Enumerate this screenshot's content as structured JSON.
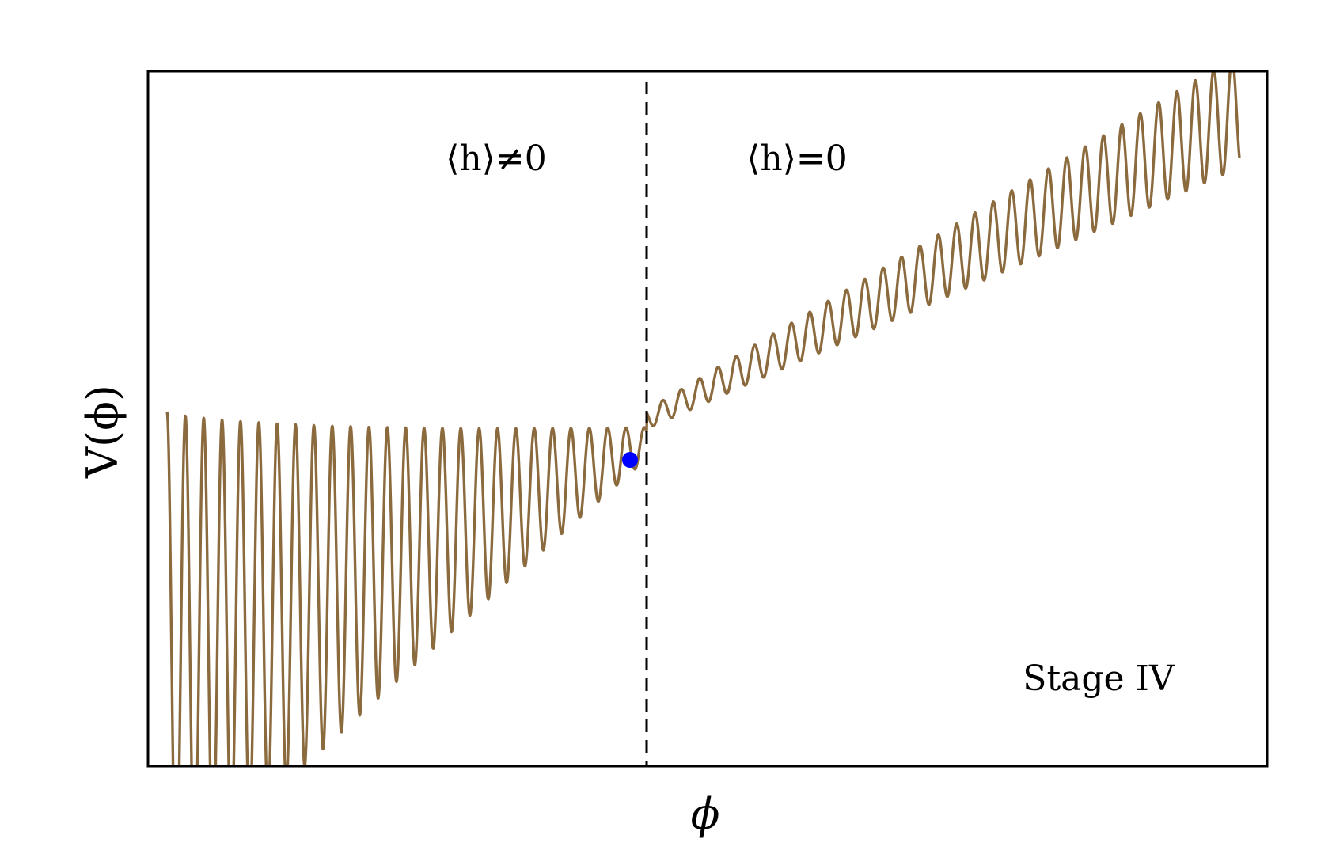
{
  "chart_data": {
    "type": "line",
    "title": "",
    "xlabel": "ϕ",
    "ylabel": "V(ϕ)",
    "xticks": [],
    "yticks": [],
    "grid": false,
    "legend": null,
    "annotations": {
      "left_region": "⟨h⟩≠0",
      "right_region": "⟨h⟩=0",
      "stage": "Stage IV"
    },
    "series": [
      {
        "name": "",
        "style": "oscillating potential with linear trend; oscillation amplitude decreases toward the boundary on the left and grows again to the right",
        "color": "#8b6a3e"
      }
    ],
    "marker": {
      "description": "current field position just left of the boundary",
      "color": "#0000ff"
    },
    "divider": {
      "style": "dashed",
      "color": "#000000",
      "meaning": "boundary between ⟨h⟩≠0 and ⟨h⟩=0"
    }
  }
}
